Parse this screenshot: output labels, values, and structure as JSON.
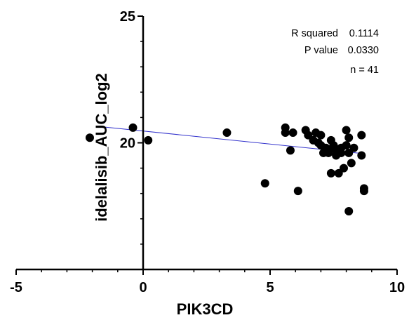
{
  "chart_data": {
    "type": "scatter",
    "xlabel": "PIK3CD",
    "ylabel": "idelalisib_AUC_log2",
    "xlim": [
      -5,
      10
    ],
    "ylim": [
      15,
      25
    ],
    "x_ticks": [
      -5,
      0,
      5,
      10
    ],
    "y_ticks": [
      20,
      25
    ],
    "grid": false,
    "marker_color": "#000000",
    "fit_line_color": "#3333cc",
    "points": [
      [
        -2.1,
        20.2
      ],
      [
        -0.4,
        20.6
      ],
      [
        0.2,
        20.1
      ],
      [
        3.3,
        20.4
      ],
      [
        4.8,
        18.4
      ],
      [
        5.6,
        20.6
      ],
      [
        5.6,
        20.4
      ],
      [
        5.9,
        20.4
      ],
      [
        5.8,
        19.7
      ],
      [
        6.1,
        18.1
      ],
      [
        6.4,
        20.5
      ],
      [
        6.5,
        20.3
      ],
      [
        6.7,
        20.1
      ],
      [
        6.8,
        20.4
      ],
      [
        6.9,
        20.0
      ],
      [
        7.0,
        20.3
      ],
      [
        7.0,
        19.9
      ],
      [
        7.1,
        19.6
      ],
      [
        7.2,
        19.8
      ],
      [
        7.3,
        19.7
      ],
      [
        7.3,
        19.6
      ],
      [
        7.4,
        20.1
      ],
      [
        7.4,
        18.8
      ],
      [
        7.5,
        19.9
      ],
      [
        7.6,
        19.5
      ],
      [
        7.6,
        19.7
      ],
      [
        7.7,
        18.8
      ],
      [
        7.8,
        19.8
      ],
      [
        7.8,
        19.6
      ],
      [
        7.9,
        19.0
      ],
      [
        8.0,
        20.5
      ],
      [
        8.0,
        19.9
      ],
      [
        8.1,
        20.2
      ],
      [
        8.1,
        19.6
      ],
      [
        8.1,
        17.3
      ],
      [
        8.2,
        19.2
      ],
      [
        8.3,
        19.8
      ],
      [
        8.6,
        20.3
      ],
      [
        8.6,
        19.5
      ],
      [
        8.7,
        18.2
      ],
      [
        8.7,
        18.1
      ]
    ],
    "fit_line": {
      "x": [
        -1.6,
        8.6
      ],
      "y": [
        20.63,
        19.58
      ]
    },
    "annotations": {
      "r_squared_label": "R squared",
      "r_squared_value": "0.1114",
      "p_value_label": "P value",
      "p_value_value": "0.0330",
      "n_label": "n = 41"
    }
  }
}
